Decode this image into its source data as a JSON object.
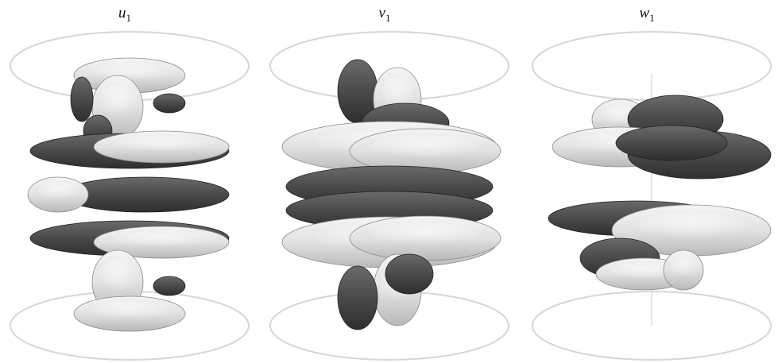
{
  "figure": {
    "panels": [
      {
        "symbol": "u",
        "subscript": "1"
      },
      {
        "symbol": "v",
        "subscript": "1"
      },
      {
        "symbol": "w",
        "subscript": "1"
      }
    ]
  }
}
